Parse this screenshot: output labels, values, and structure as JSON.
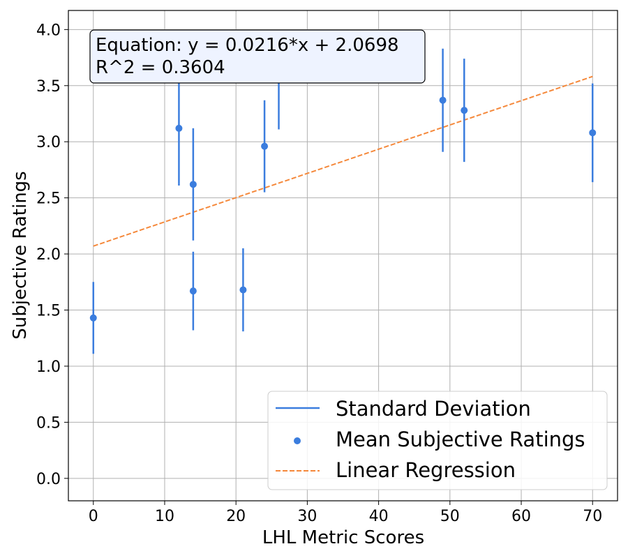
{
  "chart_data": {
    "type": "scatter",
    "title": "",
    "xlabel": "LHL Metric Scores",
    "ylabel": "Subjective Ratings",
    "xlim": [
      -3.5,
      73.5
    ],
    "ylim": [
      -0.2,
      4.17
    ],
    "xticks": [
      "0",
      "10",
      "20",
      "30",
      "40",
      "50",
      "60",
      "70"
    ],
    "yticks": [
      "0.0",
      "0.5",
      "1.0",
      "1.5",
      "2.0",
      "2.5",
      "3.0",
      "3.5",
      "4.0"
    ],
    "grid": true,
    "legend_position": "lower-right",
    "colors": {
      "points": "#3b7dde",
      "regression": "#f5883a",
      "grid": "#b0b0b0"
    },
    "points": [
      {
        "x": 0,
        "y": 1.43,
        "sd": 0.32
      },
      {
        "x": 12,
        "y": 3.12,
        "sd": 0.51
      },
      {
        "x": 14,
        "y": 2.62,
        "sd": 0.5
      },
      {
        "x": 14,
        "y": 1.67,
        "sd": 0.35
      },
      {
        "x": 21,
        "y": 1.68,
        "sd": 0.37
      },
      {
        "x": 24,
        "y": 2.96,
        "sd": 0.41
      },
      {
        "x": 26,
        "y": 3.55,
        "sd": 0.44
      },
      {
        "x": 49,
        "y": 3.37,
        "sd": 0.46
      },
      {
        "x": 52,
        "y": 3.28,
        "sd": 0.46
      },
      {
        "x": 70,
        "y": 3.08,
        "sd": 0.44
      }
    ],
    "regression": {
      "slope": 0.0216,
      "intercept": 2.0698,
      "x_range": [
        0,
        70
      ]
    },
    "annotation": {
      "equation": "Equation: y = 0.0216*x + 2.0698",
      "r_squared": "R^2 = 0.3604"
    },
    "legend": [
      {
        "label": "Standard Deviation",
        "kind": "line"
      },
      {
        "label": "Mean Subjective Ratings",
        "kind": "marker"
      },
      {
        "label": "Linear Regression",
        "kind": "dashed"
      }
    ]
  }
}
